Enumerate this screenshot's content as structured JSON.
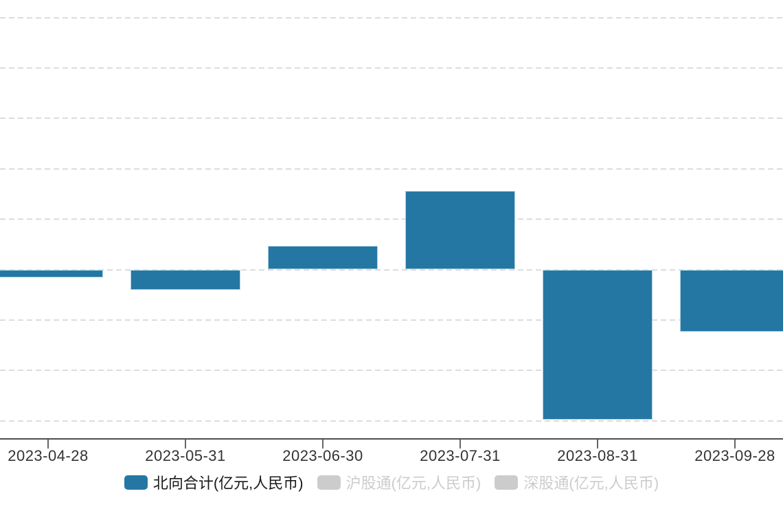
{
  "chart_data": {
    "type": "bar",
    "categories": [
      "2023-04-28",
      "2023-05-31",
      "2023-06-30",
      "2023-07-31",
      "2023-08-31",
      "2023-09-28"
    ],
    "series": [
      {
        "name": "北向合计(亿元,人民币)",
        "values": [
          -45,
          -120,
          140,
          470,
          -895,
          -370
        ],
        "visible": true
      },
      {
        "name": "沪股通(亿元,人民币)",
        "values": [],
        "visible": false
      },
      {
        "name": "深股通(亿元,人民币)",
        "values": [],
        "visible": false
      }
    ],
    "title": "",
    "xlabel": "",
    "ylabel": "",
    "ylim": [
      -1000,
      1600
    ],
    "grid_step": 300,
    "gridline_values": [
      1500,
      1200,
      900,
      600,
      300,
      0,
      -300,
      -600,
      -900
    ],
    "grid_style": "dashed",
    "y_axis_labels_visible": false,
    "legend_position": "bottom"
  },
  "legend": {
    "items": [
      {
        "label": "北向合计(亿元,人民币)",
        "active": true
      },
      {
        "label": "沪股通(亿元,人民币)",
        "active": false
      },
      {
        "label": "深股通(亿元,人民币)",
        "active": false
      }
    ]
  },
  "colors": {
    "bar_fill": "#2577a3",
    "bar_border": "#aed3e3",
    "gridline": "#dcdcdc",
    "axis_line": "#4d4d4d",
    "tick": "#666666",
    "label_text": "#333333",
    "legend_active_text": "#1a1a1a",
    "legend_inactive": "#cccccc",
    "background": "#ffffff"
  }
}
